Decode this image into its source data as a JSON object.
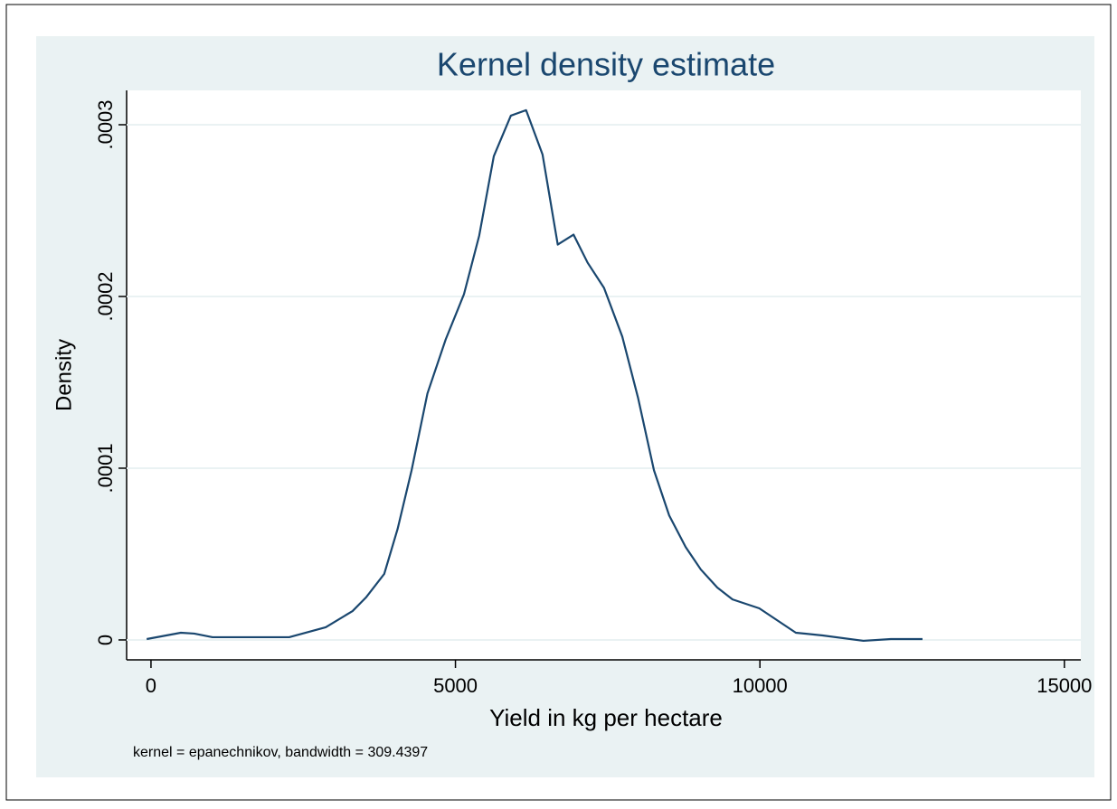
{
  "chart_data": {
    "type": "line",
    "title": "Kernel density estimate",
    "xlabel": "Yield in kg per hectare",
    "ylabel": "Density",
    "note": "kernel = epanechnikov, bandwidth = 309.4397",
    "x": [
      -70,
      490,
      710,
      1010,
      2270,
      2870,
      3310,
      3530,
      3830,
      4050,
      4280,
      4540,
      4840,
      5140,
      5390,
      5630,
      5910,
      6160,
      6430,
      6680,
      6940,
      7170,
      7440,
      7740,
      8000,
      8260,
      8510,
      8780,
      9030,
      9300,
      9550,
      9990,
      10590,
      11030,
      11700,
      12150,
      12670
    ],
    "series": [
      {
        "name": "Density",
        "color": "#1a476f",
        "values": [
          5e-07,
          4.2e-06,
          3.7e-06,
          1.6e-06,
          1.6e-06,
          7.4e-06,
          1.68e-05,
          2.47e-05,
          3.84e-05,
          6.46e-05,
          9.88e-05,
          0.0001435,
          0.000175,
          0.0002013,
          0.0002354,
          0.0002817,
          0.0003053,
          0.0003085,
          0.0002827,
          0.0002302,
          0.000236,
          0.0002197,
          0.000205,
          0.0001766,
          0.0001408,
          9.88e-05,
          7.25e-05,
          5.41e-05,
          4.1e-05,
          3.05e-05,
          2.36e-05,
          1.84e-05,
          4.2e-06,
          2.6e-06,
          -5e-07,
          5e-07,
          5e-07
        ]
      }
    ],
    "xlim": [
      -400,
      15270
    ],
    "xticks": [
      0,
      5000,
      10000,
      15000
    ],
    "ylim": [
      -1.16e-05,
      0.00032
    ],
    "yticks": [
      0,
      {
        "value": 0.0001,
        "label": ".0001"
      },
      {
        "value": 0.0002,
        "label": ".0002"
      },
      {
        "value": 0.0003,
        "label": ".0003"
      }
    ],
    "grid": true
  }
}
